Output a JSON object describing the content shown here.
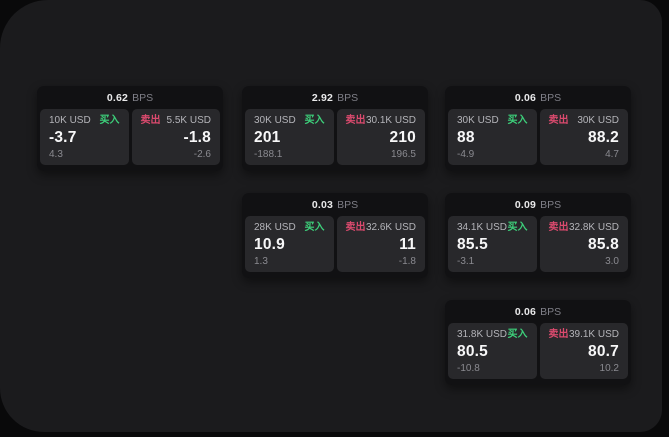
{
  "page": {
    "background": "#09090a",
    "panel_background": "#1b1b1d",
    "card_background": "#111113",
    "tile_background": "#28282b"
  },
  "labels": {
    "bps": "BPS",
    "buy": "买入",
    "sell": "卖出"
  },
  "colors": {
    "buy": "#3dd17b",
    "sell": "#db4a6e",
    "value_text": "#f7f7f8",
    "muted_text": "#8a8a90"
  },
  "cards": [
    {
      "row": 0,
      "col": 0,
      "bps": "0.62",
      "buy": {
        "amount": "10K USD",
        "main": "-3.7",
        "sub": "4.3"
      },
      "sell": {
        "amount": "5.5K USD",
        "main": "-1.8",
        "sub": "-2.6"
      }
    },
    {
      "row": 0,
      "col": 1,
      "bps": "2.92",
      "buy": {
        "amount": "30K USD",
        "main": "201",
        "sub": "-188.1"
      },
      "sell": {
        "amount": "30.1K USD",
        "main": "210",
        "sub": "196.5"
      }
    },
    {
      "row": 0,
      "col": 2,
      "bps": "0.06",
      "buy": {
        "amount": "30K USD",
        "main": "88",
        "sub": "-4.9"
      },
      "sell": {
        "amount": "30K USD",
        "main": "88.2",
        "sub": "4.7"
      }
    },
    {
      "row": 1,
      "col": 1,
      "bps": "0.03",
      "buy": {
        "amount": "28K USD",
        "main": "10.9",
        "sub": "1.3"
      },
      "sell": {
        "amount": "32.6K USD",
        "main": "11",
        "sub": "-1.8"
      }
    },
    {
      "row": 1,
      "col": 2,
      "bps": "0.09",
      "buy": {
        "amount": "34.1K USD",
        "main": "85.5",
        "sub": "-3.1"
      },
      "sell": {
        "amount": "32.8K USD",
        "main": "85.8",
        "sub": "3.0"
      }
    },
    {
      "row": 2,
      "col": 2,
      "bps": "0.06",
      "buy": {
        "amount": "31.8K USD",
        "main": "80.5",
        "sub": "-10.8"
      },
      "sell": {
        "amount": "39.1K USD",
        "main": "80.7",
        "sub": "10.2"
      }
    }
  ]
}
